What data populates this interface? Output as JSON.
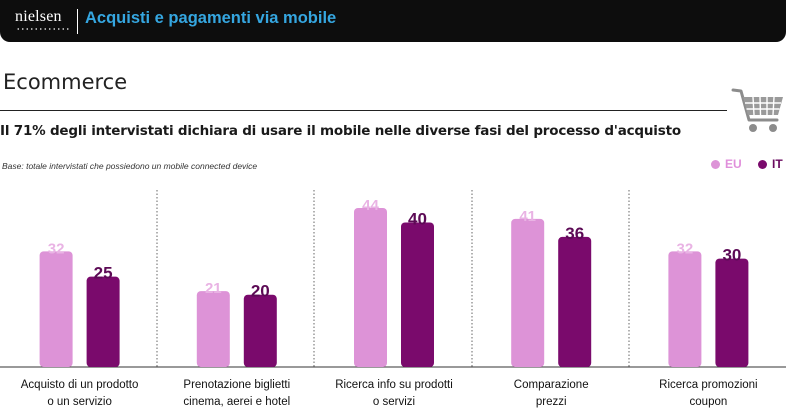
{
  "header": {
    "logo": "nielsen",
    "title": "Acquisti e pagamenti via mobile"
  },
  "section_title": "Ecommerce",
  "headline": "Il 71% degli intervistati dichiara di usare il mobile nelle diverse fasi del processo d'acquisto",
  "base_note": "Base: totale intervistati che possiedono un mobile connected device",
  "icons": [
    "cart-icon"
  ],
  "colors": {
    "eu": "#dd93d7",
    "it": "#7a0a6c",
    "eu_label": "#e9b3e4",
    "it_label": "#5c0a55"
  },
  "chart_data": {
    "type": "bar",
    "categories": [
      [
        "Acquisto di un prodotto",
        "o un servizio"
      ],
      [
        "Prenotazione biglietti",
        "cinema, aerei e hotel"
      ],
      [
        "Ricerca info su prodotti",
        "o servizi"
      ],
      [
        "Comparazione",
        "prezzi"
      ],
      [
        "Ricerca promozioni",
        "coupon"
      ]
    ],
    "series": [
      {
        "name": "EU",
        "values": [
          32,
          21,
          44,
          41,
          32
        ]
      },
      {
        "name": "IT",
        "values": [
          25,
          20,
          40,
          36,
          30
        ]
      }
    ],
    "ylim": [
      0,
      44
    ],
    "legend": "top-right",
    "grid": false,
    "data_labels": true
  }
}
